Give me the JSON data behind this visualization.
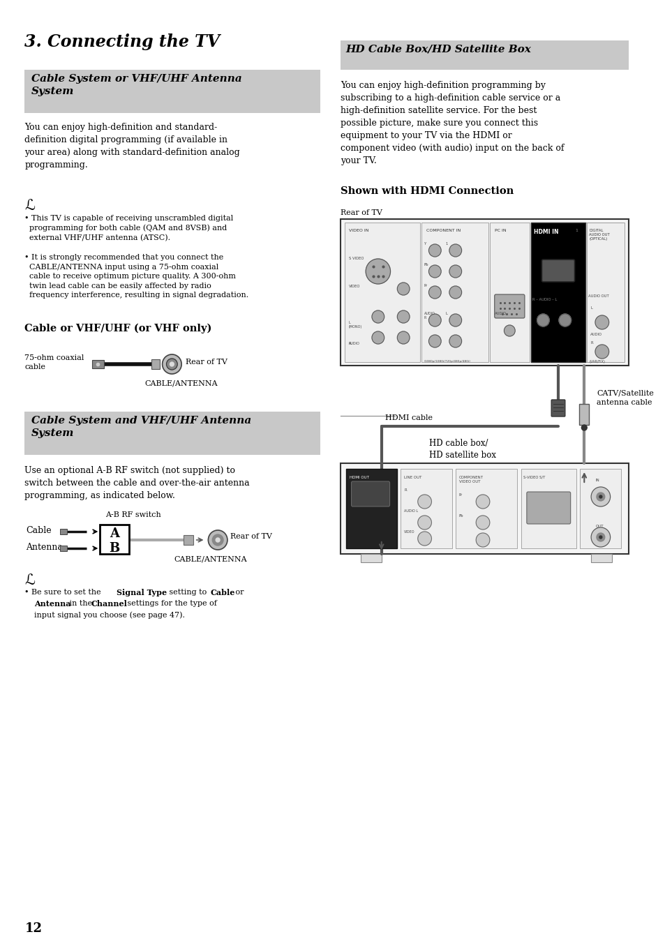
{
  "bg_color": "#ffffff",
  "page_number": "12",
  "title": "3. Connecting the TV",
  "section1_header": "Cable System or VHF/UHF Antenna\nSystem",
  "section1_header_bg": "#c8c8c8",
  "section1_body": "You can enjoy high-definition and standard-\ndefinition digital programming (if available in\nyour area) along with standard-definition analog\nprogramming.",
  "note1": "This TV is capable of receiving unscrambled digital\nprogramming for both cable (QAM and 8VSB) and\nexternal VHF/UHF antenna (ATSC).",
  "note2": "It is strongly recommended that you connect the\nCABLE/ANTENNA input using a 75-ohm coaxial\ncable to receive optimum picture quality. A 300-ohm\ntwin lead cable can be easily affected by radio\nfrequency interference, resulting in signal degradation.",
  "subheader1": "Cable or VHF/UHF (or VHF only)",
  "cable_label1": "75-ohm coaxial\ncable",
  "rear_tv1": "Rear of TV",
  "cable_antenna1": "CABLE/ANTENNA",
  "section2_header": "Cable System and VHF/UHF Antenna\nSystem",
  "section2_header_bg": "#c8c8c8",
  "section2_body": "Use an optional A-B RF switch (not supplied) to\nswitch between the cable and over-the-air antenna\nprogramming, as indicated below.",
  "ab_switch_label": "A-B RF switch",
  "cable_label": "Cable",
  "antenna_label": "Antenna",
  "rear_tv2": "Rear of TV",
  "cable_antenna2": "CABLE/ANTENNA",
  "note3_prefix": "• Be sure to set the ",
  "note3_bold1": "Signal Type",
  "note3_mid": " setting to ",
  "note3_bold2": "Cable",
  "note3_or": " or",
  "note3_bold3": "Antenna",
  "note3_in": " in the ",
  "note3_bold4": "Channel",
  "note3_end": " settings for the type of\n  input signal you choose (see page 47).",
  "right_header": "HD Cable Box/HD Satellite Box",
  "right_header_bg": "#c8c8c8",
  "right_body": "You can enjoy high-definition programming by\nsubscribing to a high-definition cable service or a\nhigh-definition satellite service. For the best\npossible picture, make sure you connect this\nequipment to your TV via the HDMI or\ncomponent video (with audio) input on the back of\nyour TV.",
  "shown_header": "Shown with HDMI Connection",
  "rear_tv_right": "Rear of TV",
  "hdmi_cable_label": "HDMI cable",
  "catv_label": "CATV/Satellite\nantenna cable",
  "hd_box_label": "HD cable box/\nHD satellite box"
}
